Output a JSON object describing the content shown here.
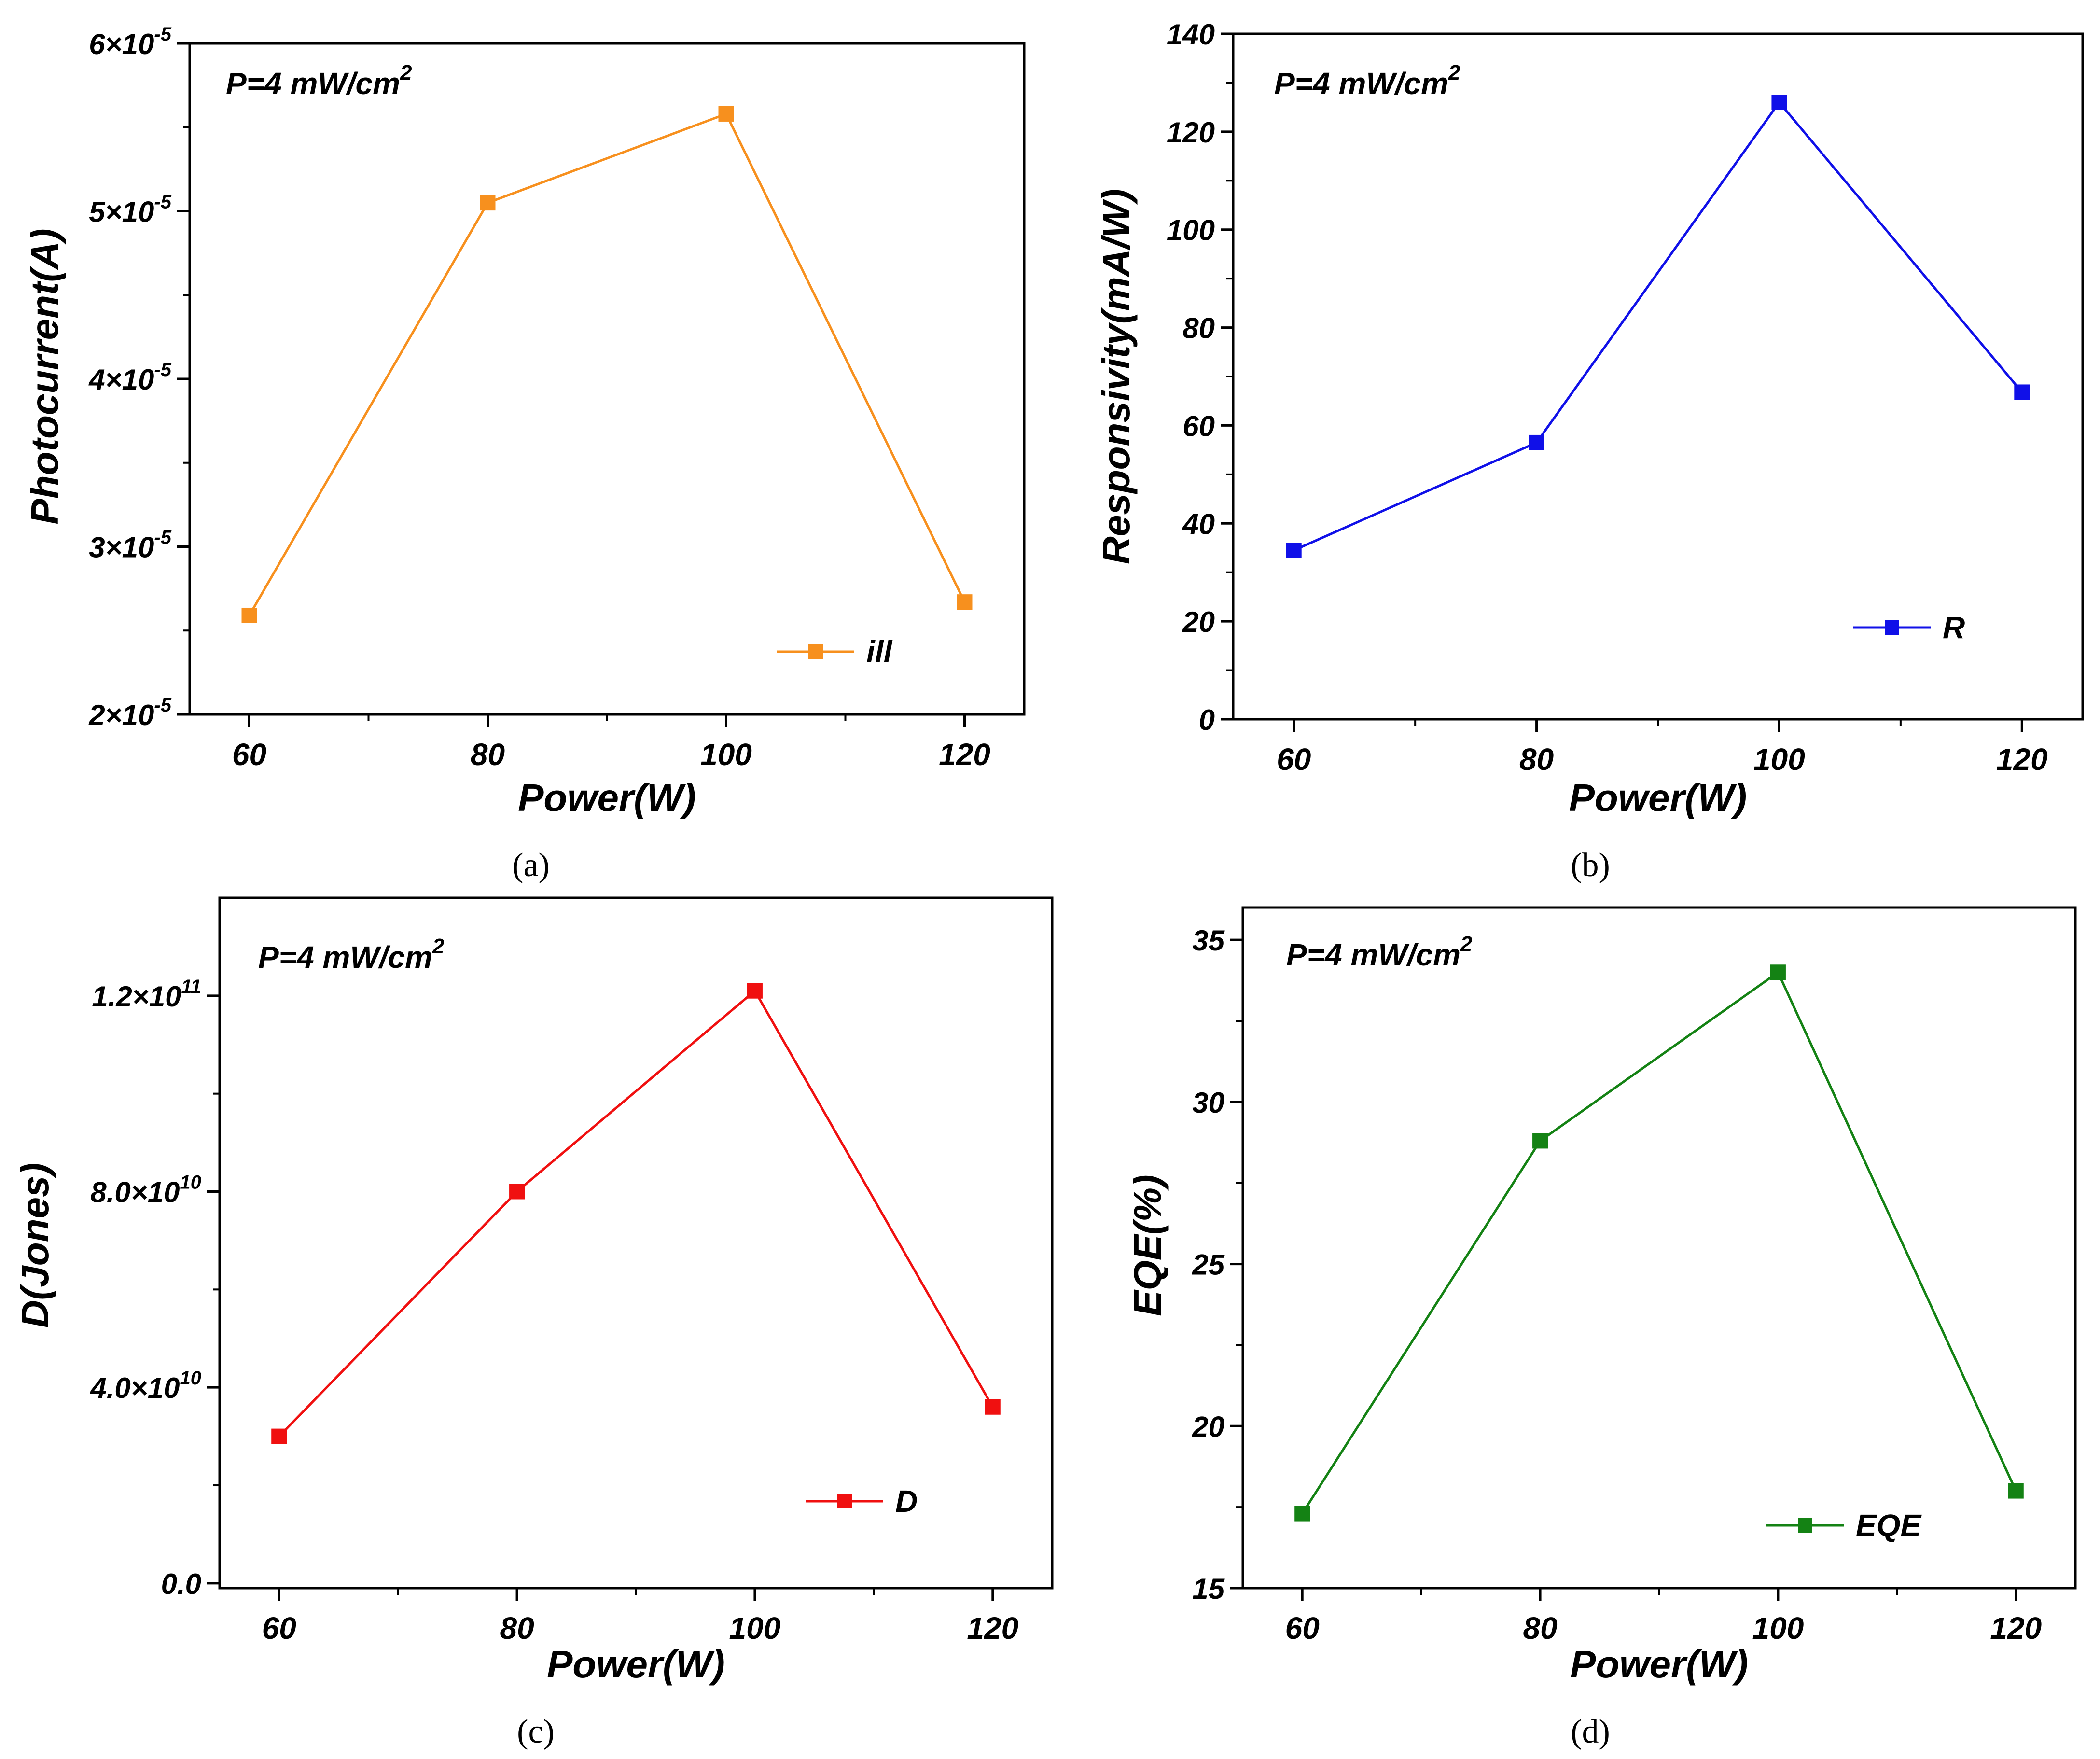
{
  "colors": {
    "panel_a": "#f7901e",
    "panel_b": "#1010e8",
    "panel_c": "#f01010",
    "panel_d": "#148214",
    "axis": "#000000"
  },
  "chart_data": [
    {
      "id": "a",
      "type": "line",
      "caption": "(a)",
      "annotation_main": "P=4 mW/cm",
      "annotation_sup": "2",
      "xlabel": "Power(W)",
      "ylabel": "Photocurrent(A)",
      "xlim": [
        55,
        125
      ],
      "ylim": [
        2e-05,
        6e-05
      ],
      "xticks": [
        60,
        80,
        100,
        120
      ],
      "xtick_labels": [
        "60",
        "80",
        "100",
        "120"
      ],
      "xminor": [
        70,
        90,
        110
      ],
      "yticks": [
        2e-05,
        3e-05,
        4e-05,
        5e-05,
        6e-05
      ],
      "ytick_base": [
        "2×10",
        "3×10",
        "4×10",
        "5×10",
        "6×10"
      ],
      "ytick_exp": [
        "-5",
        "-5",
        "-5",
        "-5",
        "-5"
      ],
      "yminor": [
        2.5e-05,
        3.5e-05,
        4.5e-05,
        5.5e-05
      ],
      "legend_position": "bottom-right",
      "series": [
        {
          "name": "ill",
          "color": "#f7901e",
          "x": [
            60,
            80,
            100,
            120
          ],
          "y": [
            2.59e-05,
            5.05e-05,
            5.58e-05,
            2.67e-05
          ]
        }
      ]
    },
    {
      "id": "b",
      "type": "line",
      "caption": "(b)",
      "annotation_main": "P=4 mW/cm",
      "annotation_sup": "2",
      "xlabel": "Power(W)",
      "ylabel": "Responsivity(mA/W)",
      "xlim": [
        55,
        125
      ],
      "ylim": [
        0,
        140
      ],
      "xticks": [
        60,
        80,
        100,
        120
      ],
      "xtick_labels": [
        "60",
        "80",
        "100",
        "120"
      ],
      "xminor": [
        70,
        90,
        110
      ],
      "yticks": [
        0,
        20,
        40,
        60,
        80,
        100,
        120,
        140
      ],
      "ytick_base": [
        "0",
        "20",
        "40",
        "60",
        "80",
        "100",
        "120",
        "140"
      ],
      "ytick_exp": [
        "",
        "",
        "",
        "",
        "",
        "",
        "",
        ""
      ],
      "yminor": [
        10,
        30,
        50,
        70,
        90,
        110,
        130
      ],
      "legend_position": "bottom-right",
      "series": [
        {
          "name": "R",
          "color": "#1010e8",
          "x": [
            60,
            80,
            100,
            120
          ],
          "y": [
            34.5,
            56.5,
            126,
            66.8
          ]
        }
      ]
    },
    {
      "id": "c",
      "type": "line",
      "caption": "(c)",
      "annotation_main": "P=4 mW/cm",
      "annotation_sup": "2",
      "xlabel": "Power(W)",
      "ylabel": "D(Jones)",
      "xlim": [
        55,
        125
      ],
      "ylim": [
        -1000000000.0,
        140000000000.0
      ],
      "xticks": [
        60,
        80,
        100,
        120
      ],
      "xtick_labels": [
        "60",
        "80",
        "100",
        "120"
      ],
      "xminor": [
        70,
        90,
        110
      ],
      "yticks": [
        0,
        40000000000.0,
        80000000000.0,
        120000000000.0
      ],
      "ytick_base": [
        "0.0",
        "4.0×10",
        "8.0×10",
        "1.2×10"
      ],
      "ytick_exp": [
        "",
        "10",
        "10",
        "11"
      ],
      "yminor": [
        20000000000.0,
        60000000000.0,
        100000000000.0
      ],
      "legend_position": "bottom-right",
      "series": [
        {
          "name": "D",
          "color": "#f01010",
          "x": [
            60,
            80,
            100,
            120
          ],
          "y": [
            30000000000.0,
            80000000000.0,
            121000000000.0,
            36000000000.0
          ]
        }
      ]
    },
    {
      "id": "d",
      "type": "line",
      "caption": "(d)",
      "annotation_main": "P=4 mW/cm",
      "annotation_sup": "2",
      "xlabel": "Power(W)",
      "ylabel": "EQE(%)",
      "xlim": [
        55,
        125
      ],
      "ylim": [
        15,
        36
      ],
      "xticks": [
        60,
        80,
        100,
        120
      ],
      "xtick_labels": [
        "60",
        "80",
        "100",
        "120"
      ],
      "xminor": [
        70,
        90,
        110
      ],
      "yticks": [
        15,
        20,
        25,
        30,
        35
      ],
      "ytick_base": [
        "15",
        "20",
        "25",
        "30",
        "35"
      ],
      "ytick_exp": [
        "",
        "",
        "",
        "",
        ""
      ],
      "yminor": [
        17.5,
        22.5,
        27.5,
        32.5
      ],
      "legend_position": "bottom-right",
      "series": [
        {
          "name": "EQE",
          "color": "#148214",
          "x": [
            60,
            80,
            100,
            120
          ],
          "y": [
            17.3,
            28.8,
            34.0,
            18.0
          ]
        }
      ]
    }
  ]
}
